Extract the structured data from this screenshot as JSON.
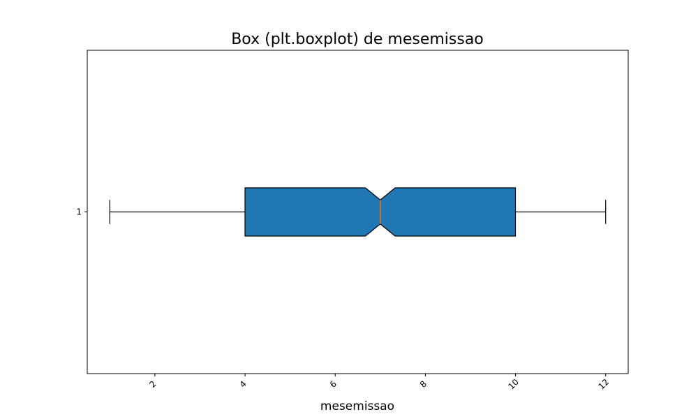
{
  "chart_data": {
    "type": "boxplot",
    "orientation": "horizontal",
    "title": "Box (plt.boxplot) de mesemissao",
    "xlabel": "mesemissao",
    "ylabel": "",
    "xlim": [
      0.5,
      12.5
    ],
    "xticks": [
      2,
      4,
      6,
      8,
      10,
      12
    ],
    "xtick_labels": [
      "2",
      "4",
      "6",
      "8",
      "10",
      "12"
    ],
    "xtick_rotation": 45,
    "yticks": [
      1
    ],
    "ytick_labels": [
      "1"
    ],
    "notched": true,
    "grid": false,
    "box_color": "#1f77b4",
    "median_color": "#ff7f0e",
    "boxes": [
      {
        "position": 1,
        "whisker_low": 1,
        "q1": 4,
        "notch_low": 6.67,
        "median": 7,
        "notch_high": 7.33,
        "q3": 10,
        "whisker_high": 12
      }
    ]
  }
}
